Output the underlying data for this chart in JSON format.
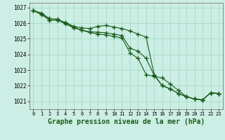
{
  "title": "Graphe pression niveau de la mer (hPa)",
  "title_fontsize": 7.0,
  "bg_color": "#cceee4",
  "grid_color": "#aaddcc",
  "line_color": "#1a5c1a",
  "xlim": [
    -0.5,
    23.5
  ],
  "ylim": [
    1020.5,
    1027.3
  ],
  "yticks": [
    1021,
    1022,
    1023,
    1024,
    1025,
    1026,
    1027
  ],
  "xticks": [
    0,
    1,
    2,
    3,
    4,
    5,
    6,
    7,
    8,
    9,
    10,
    11,
    12,
    13,
    14,
    15,
    16,
    17,
    18,
    19,
    20,
    21,
    22,
    23
  ],
  "series": [
    [
      1026.8,
      1026.65,
      1026.3,
      1026.25,
      1026.0,
      1025.75,
      1025.55,
      1025.4,
      1025.3,
      1025.25,
      1025.15,
      1025.05,
      1024.1,
      1023.75,
      1022.7,
      1022.6,
      1022.5,
      1022.1,
      1021.7,
      1021.3,
      1021.15,
      1021.1,
      1021.55,
      1021.5
    ],
    [
      1026.8,
      1026.55,
      1026.2,
      1026.2,
      1026.05,
      1025.8,
      1025.7,
      1025.65,
      1025.8,
      1025.85,
      1025.75,
      1025.65,
      1025.5,
      1025.3,
      1025.1,
      1022.7,
      1022.0,
      1021.8,
      1021.5,
      1021.3,
      1021.15,
      1021.1,
      1021.55,
      1021.5
    ],
    [
      1026.8,
      1026.6,
      1026.2,
      1026.2,
      1025.95,
      1025.7,
      1025.55,
      1025.45,
      1025.42,
      1025.38,
      1025.3,
      1025.2,
      1024.4,
      1024.2,
      1023.75,
      1022.65,
      1022.0,
      1021.8,
      1021.5,
      1021.3,
      1021.15,
      1021.1,
      1021.55,
      1021.5
    ]
  ]
}
